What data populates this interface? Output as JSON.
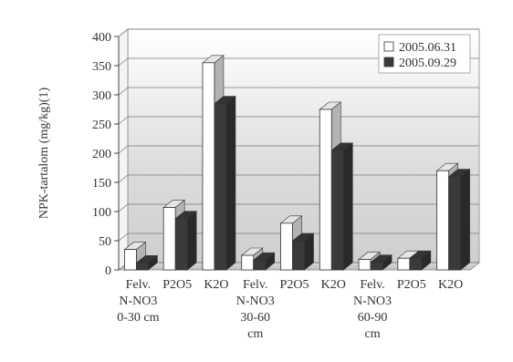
{
  "chart_data": {
    "type": "bar",
    "ylabel": "NPK-tartalom (mg/kg)(1)",
    "ylim": [
      0,
      400
    ],
    "yticks": [
      0,
      50,
      100,
      150,
      200,
      250,
      300,
      350,
      400
    ],
    "grid": true,
    "legend_position": "top-right",
    "three_d": true,
    "categories": [
      [
        "Felv.",
        "N-NO3",
        "0-30 cm"
      ],
      [
        "P2O5"
      ],
      [
        "K2O"
      ],
      [
        "Felv.",
        "N-NO3",
        "30-60",
        "cm"
      ],
      [
        "P2O5"
      ],
      [
        "K2O"
      ],
      [
        "Felv.",
        "N-NO3",
        "60-90",
        "cm"
      ],
      [
        "P2O5"
      ],
      [
        "K2O"
      ]
    ],
    "series": [
      {
        "name": "2005.06.31",
        "color": "#ffffff",
        "values": [
          35,
          107,
          355,
          25,
          80,
          275,
          18,
          20,
          170
        ]
      },
      {
        "name": "2005.09.29",
        "color": "#3a3a3a",
        "values": [
          12,
          88,
          285,
          17,
          50,
          205,
          13,
          20,
          160
        ]
      }
    ]
  }
}
